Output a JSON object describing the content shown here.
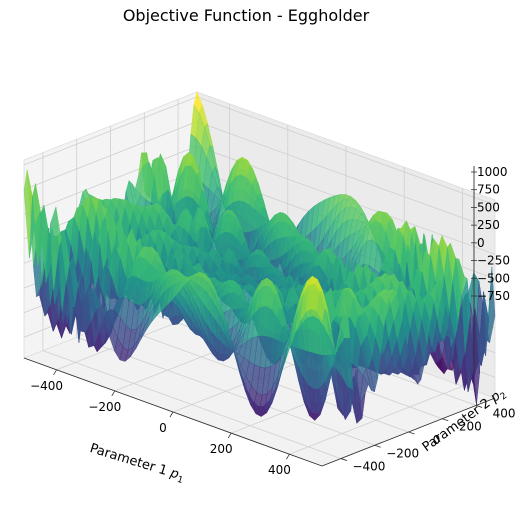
{
  "chart_data": {
    "type": "surface",
    "title": "Objective Function - Eggholder",
    "xlabel": "Parameter 1 ",
    "xlabel_sym": "p",
    "xlabel_sub": "1",
    "ylabel": "Parameter 2 ",
    "ylabel_sym": "p",
    "ylabel_sub": "2",
    "xlim": [
      -512,
      512
    ],
    "ylim": [
      -512,
      512
    ],
    "zlim": [
      -960,
      1050
    ],
    "xticks": [
      "−400",
      "−200",
      "0",
      "200",
      "400"
    ],
    "xtick_values": [
      -400,
      -200,
      0,
      200,
      400
    ],
    "yticks": [
      "−400",
      "−200",
      "0",
      "200",
      "400"
    ],
    "ytick_values": [
      -400,
      -200,
      0,
      200,
      400
    ],
    "zticks": [
      "1000",
      "750",
      "500",
      "250",
      "0",
      "−250",
      "−500",
      "−750"
    ],
    "ztick_values": [
      1000,
      750,
      500,
      250,
      0,
      -250,
      -500,
      -750
    ],
    "colormap": "viridis",
    "grid": true,
    "function": "eggholder"
  }
}
